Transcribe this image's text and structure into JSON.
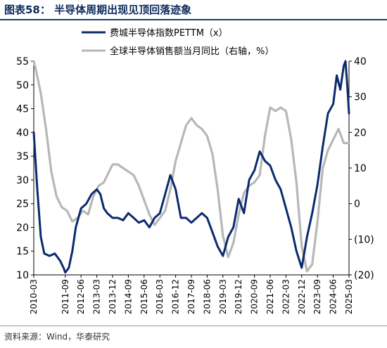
{
  "figure": {
    "title": "图表58：  半导体周期出现见顶回落迹象",
    "source": "资料来源：Wind，华泰研究"
  },
  "chart_data": {
    "type": "line",
    "grid": false,
    "legend_position": "top",
    "x_tick_labels": [
      "2010-03",
      "2011-09",
      "2012-06",
      "2013-03",
      "2013-12",
      "2014-09",
      "2015-06",
      "2016-03",
      "2016-12",
      "2017-09",
      "2018-06",
      "2019-03",
      "2019-12",
      "2020-09",
      "2021-06",
      "2022-03",
      "2022-12",
      "2023-09",
      "2024-06",
      "2025-03"
    ],
    "y_left": {
      "min": 10,
      "max": 55,
      "ticks": [
        "10",
        "15",
        "20",
        "25",
        "30",
        "35",
        "40",
        "45",
        "50",
        "55"
      ]
    },
    "y_right": {
      "min": -20,
      "max": 40,
      "ticks": [
        "(20)",
        "(10)",
        "0",
        "10",
        "20",
        "30",
        "40"
      ]
    },
    "series": [
      {
        "name": "费城半导体指数PETTM（x）",
        "axis": "left",
        "color": "#0b2a6e",
        "points": [
          [
            "2010-03",
            40
          ],
          [
            "2010-05",
            28
          ],
          [
            "2010-07",
            18
          ],
          [
            "2010-09",
            14.5
          ],
          [
            "2010-12",
            14
          ],
          [
            "2011-03",
            14.5
          ],
          [
            "2011-06",
            13
          ],
          [
            "2011-08",
            11.5
          ],
          [
            "2011-09",
            10.5
          ],
          [
            "2011-11",
            11.5
          ],
          [
            "2012-01",
            15
          ],
          [
            "2012-03",
            20
          ],
          [
            "2012-06",
            24
          ],
          [
            "2012-09",
            25
          ],
          [
            "2012-12",
            27
          ],
          [
            "2013-03",
            28
          ],
          [
            "2013-05",
            27
          ],
          [
            "2013-07",
            24
          ],
          [
            "2013-09",
            23
          ],
          [
            "2013-12",
            22
          ],
          [
            "2014-03",
            22
          ],
          [
            "2014-06",
            21.5
          ],
          [
            "2014-09",
            23
          ],
          [
            "2014-12",
            22
          ],
          [
            "2015-03",
            21
          ],
          [
            "2015-06",
            21.5
          ],
          [
            "2015-09",
            20
          ],
          [
            "2015-12",
            22
          ],
          [
            "2016-03",
            23
          ],
          [
            "2016-06",
            27
          ],
          [
            "2016-09",
            31
          ],
          [
            "2016-12",
            28
          ],
          [
            "2017-03",
            22
          ],
          [
            "2017-06",
            22
          ],
          [
            "2017-09",
            21
          ],
          [
            "2017-12",
            22
          ],
          [
            "2018-03",
            23
          ],
          [
            "2018-06",
            22
          ],
          [
            "2018-09",
            19
          ],
          [
            "2018-12",
            16
          ],
          [
            "2019-03",
            14
          ],
          [
            "2019-06",
            18
          ],
          [
            "2019-09",
            20
          ],
          [
            "2019-12",
            26
          ],
          [
            "2020-03",
            23
          ],
          [
            "2020-06",
            30
          ],
          [
            "2020-09",
            32
          ],
          [
            "2020-12",
            36
          ],
          [
            "2021-03",
            34
          ],
          [
            "2021-06",
            33
          ],
          [
            "2021-09",
            30
          ],
          [
            "2021-12",
            28
          ],
          [
            "2022-03",
            24
          ],
          [
            "2022-06",
            20
          ],
          [
            "2022-09",
            15
          ],
          [
            "2022-12",
            11.5
          ],
          [
            "2023-03",
            18
          ],
          [
            "2023-06",
            23
          ],
          [
            "2023-09",
            29
          ],
          [
            "2023-12",
            37
          ],
          [
            "2024-03",
            44
          ],
          [
            "2024-06",
            46
          ],
          [
            "2024-08",
            52
          ],
          [
            "2024-10",
            49
          ],
          [
            "2024-12",
            54
          ],
          [
            "2025-01",
            55
          ],
          [
            "2025-02",
            50
          ],
          [
            "2025-03",
            44
          ]
        ]
      },
      {
        "name": "全球半导体销售额当月同比（右轴，%）",
        "axis": "right",
        "color": "#b7b7b7",
        "points": [
          [
            "2010-03",
            40
          ],
          [
            "2010-04",
            38
          ],
          [
            "2010-07",
            31
          ],
          [
            "2010-10",
            21
          ],
          [
            "2011-01",
            9
          ],
          [
            "2011-04",
            2
          ],
          [
            "2011-07",
            -1
          ],
          [
            "2011-10",
            -2
          ],
          [
            "2012-01",
            -5
          ],
          [
            "2012-04",
            -4
          ],
          [
            "2012-07",
            -2
          ],
          [
            "2012-10",
            -3
          ],
          [
            "2013-01",
            2
          ],
          [
            "2013-04",
            5
          ],
          [
            "2013-07",
            6
          ],
          [
            "2013-10",
            9
          ],
          [
            "2013-12",
            11
          ],
          [
            "2014-03",
            11
          ],
          [
            "2014-06",
            10
          ],
          [
            "2014-09",
            9
          ],
          [
            "2014-12",
            8
          ],
          [
            "2015-03",
            5
          ],
          [
            "2015-06",
            1
          ],
          [
            "2015-09",
            -3
          ],
          [
            "2015-12",
            -6
          ],
          [
            "2016-03",
            -4
          ],
          [
            "2016-06",
            -2
          ],
          [
            "2016-09",
            4
          ],
          [
            "2016-12",
            12
          ],
          [
            "2017-03",
            17
          ],
          [
            "2017-06",
            22
          ],
          [
            "2017-09",
            24
          ],
          [
            "2017-12",
            22
          ],
          [
            "2018-03",
            21
          ],
          [
            "2018-06",
            19
          ],
          [
            "2018-09",
            14
          ],
          [
            "2018-12",
            4
          ],
          [
            "2019-03",
            -9
          ],
          [
            "2019-06",
            -15
          ],
          [
            "2019-09",
            -11
          ],
          [
            "2019-12",
            -3
          ],
          [
            "2020-03",
            3
          ],
          [
            "2020-06",
            5
          ],
          [
            "2020-09",
            6
          ],
          [
            "2020-12",
            8
          ],
          [
            "2021-03",
            19
          ],
          [
            "2021-06",
            27
          ],
          [
            "2021-09",
            26
          ],
          [
            "2021-12",
            27
          ],
          [
            "2022-03",
            26
          ],
          [
            "2022-06",
            18
          ],
          [
            "2022-09",
            6
          ],
          [
            "2022-12",
            -12
          ],
          [
            "2023-03",
            -19
          ],
          [
            "2023-06",
            -17
          ],
          [
            "2023-09",
            -5
          ],
          [
            "2023-12",
            10
          ],
          [
            "2024-03",
            15
          ],
          [
            "2024-06",
            18
          ],
          [
            "2024-09",
            21
          ],
          [
            "2024-12",
            17
          ],
          [
            "2025-03",
            17
          ]
        ]
      }
    ]
  }
}
